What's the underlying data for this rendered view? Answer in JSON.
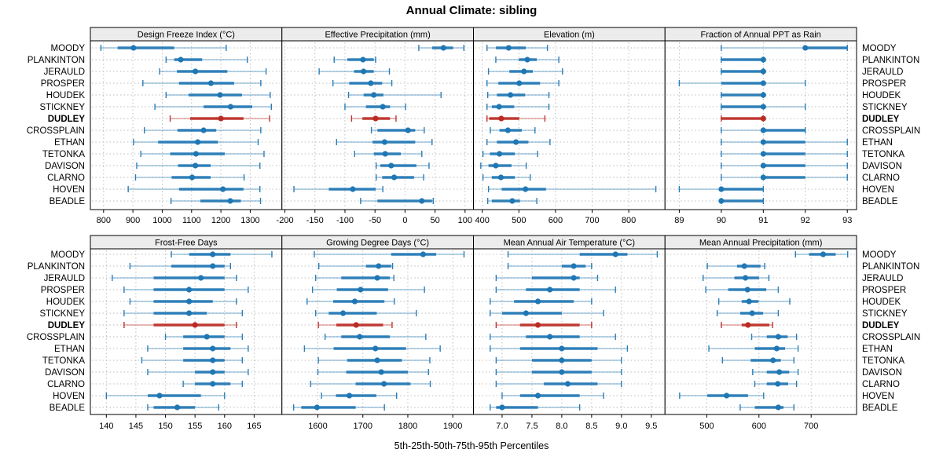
{
  "chart_data": {
    "type": "scatter",
    "subtype": "percentile-dotplot-lattice",
    "title": "Annual Climate: sibling",
    "caption": "5th-25th-50th-75th-95th Percentiles",
    "percentiles": [
      5,
      25,
      50,
      75,
      95
    ],
    "grid": "dotted",
    "legend_position": "none",
    "categories": [
      "MOODY",
      "PLANKINTON",
      "JERAULD",
      "PROSPER",
      "HOUDEK",
      "STICKNEY",
      "DUDLEY",
      "CROSSPLAIN",
      "ETHAN",
      "TETONKA",
      "DAVISON",
      "CLARNO",
      "HOVEN",
      "BEADLE"
    ],
    "highlight_category": "DUDLEY",
    "colors": {
      "series": "#1f77b4",
      "highlight": "#bb2a24",
      "strip_bg": "#ececec",
      "panel_border": "#000000",
      "grid_line": "#bdbdbd",
      "text": "#000000"
    },
    "panels": [
      {
        "label": "Design Freeze Index (°C)",
        "xlim": [
          755,
          1408
        ],
        "ticks": [
          800,
          900,
          1000,
          1100,
          1200,
          1300
        ],
        "tick_labels": [
          "800",
          "900",
          "1000",
          "1100",
          "1200",
          "1300"
        ],
        "values": [
          [
            791,
            848,
            902,
            1041,
            1218
          ],
          [
            1013,
            1041,
            1063,
            1136,
            1290
          ],
          [
            991,
            1050,
            1113,
            1222,
            1354
          ],
          [
            934,
            1057,
            1166,
            1245,
            1336
          ],
          [
            1013,
            1090,
            1197,
            1272,
            1368
          ],
          [
            975,
            1141,
            1233,
            1307,
            1372
          ],
          [
            1027,
            1095,
            1200,
            1277,
            1366
          ],
          [
            939,
            1052,
            1141,
            1184,
            1336
          ],
          [
            902,
            986,
            1121,
            1190,
            1327
          ],
          [
            927,
            1027,
            1115,
            1213,
            1347
          ],
          [
            913,
            1054,
            1113,
            1165,
            1333
          ],
          [
            909,
            1032,
            1102,
            1165,
            1279
          ],
          [
            884,
            1057,
            1207,
            1277,
            1333
          ],
          [
            1030,
            1130,
            1232,
            1268,
            1335
          ]
        ]
      },
      {
        "label": "Effective Precipitation (mm)",
        "xlim": [
          -205,
          114
        ],
        "ticks": [
          -200,
          -150,
          -100,
          -50,
          0,
          50,
          100
        ],
        "tick_labels": [
          "-200",
          "-150",
          "-100",
          "-50",
          "0",
          "50",
          "100"
        ],
        "values": [
          [
            23,
            45,
            64,
            80,
            98
          ],
          [
            -118,
            -96,
            -70,
            -52,
            -49
          ],
          [
            -143,
            -85,
            -69,
            -52,
            -26
          ],
          [
            -120,
            -93,
            -57,
            -38,
            -22
          ],
          [
            -94,
            -69,
            -52,
            -36,
            60
          ],
          [
            -100,
            -65,
            -37,
            -25,
            1
          ],
          [
            -89,
            -71,
            -49,
            -25,
            -15
          ],
          [
            -56,
            -46,
            5,
            17,
            32
          ],
          [
            -114,
            -54,
            -34,
            17,
            45
          ],
          [
            -84,
            -52,
            -33,
            -7,
            28
          ],
          [
            -48,
            -41,
            -23,
            19,
            40
          ],
          [
            -48,
            -38,
            -18,
            15,
            31
          ],
          [
            -185,
            -127,
            -87,
            -49,
            -37
          ],
          [
            -74,
            -46,
            28,
            45,
            47
          ]
        ]
      },
      {
        "label": "Elevation (m)",
        "xlim": [
          376,
          899
        ],
        "ticks": [
          400,
          500,
          600,
          700,
          800
        ],
        "tick_labels": [
          "400",
          "500",
          "600",
          "700",
          "800"
        ],
        "values": [
          [
            413,
            437,
            472,
            519,
            578
          ],
          [
            437,
            500,
            523,
            549,
            609
          ],
          [
            417,
            474,
            514,
            538,
            619
          ],
          [
            413,
            444,
            501,
            558,
            609
          ],
          [
            415,
            440,
            477,
            517,
            582
          ],
          [
            413,
            426,
            446,
            487,
            582
          ],
          [
            413,
            419,
            452,
            501,
            571
          ],
          [
            422,
            447,
            470,
            508,
            544
          ],
          [
            413,
            440,
            492,
            526,
            585
          ],
          [
            402,
            421,
            447,
            489,
            551
          ],
          [
            396,
            417,
            437,
            480,
            520
          ],
          [
            402,
            426,
            451,
            489,
            531
          ],
          [
            417,
            453,
            518,
            574,
            874
          ],
          [
            415,
            426,
            482,
            503,
            549
          ]
        ]
      },
      {
        "label": "Fraction of Annual PPT as Rain",
        "xlim": [
          88.66,
          93.22
        ],
        "ticks": [
          89,
          90,
          91,
          92,
          93
        ],
        "tick_labels": [
          "89",
          "90",
          "91",
          "92",
          "93"
        ],
        "values": [
          [
            90,
            92,
            92,
            93,
            93
          ],
          [
            90,
            90,
            91,
            91,
            91
          ],
          [
            90,
            90,
            91,
            91,
            91
          ],
          [
            89,
            90,
            91,
            91,
            92
          ],
          [
            90,
            90,
            91,
            91,
            91
          ],
          [
            90,
            90,
            91,
            91,
            92
          ],
          [
            90,
            90,
            91,
            91,
            91
          ],
          [
            90,
            91,
            91,
            92,
            92
          ],
          [
            90,
            91,
            91,
            92,
            93
          ],
          [
            90,
            91,
            91,
            92,
            93
          ],
          [
            90,
            91,
            91,
            92,
            93
          ],
          [
            90,
            91,
            91,
            92,
            93
          ],
          [
            89,
            90,
            90,
            91,
            91
          ],
          [
            90,
            90,
            90,
            91,
            91
          ]
        ]
      },
      {
        "label": "Frost-Free Days",
        "xlim": [
          137.3,
          169.7
        ],
        "ticks": [
          140,
          145,
          150,
          155,
          160,
          165
        ],
        "tick_labels": [
          "140",
          "145",
          "150",
          "155",
          "160",
          "165"
        ],
        "values": [
          [
            151,
            154,
            158,
            161,
            168
          ],
          [
            144,
            151,
            158,
            160,
            161
          ],
          [
            141,
            148,
            156,
            160,
            162
          ],
          [
            143,
            148,
            154,
            160,
            164
          ],
          [
            144,
            148,
            154,
            158,
            162
          ],
          [
            143,
            148,
            154,
            157,
            163
          ],
          [
            143,
            148,
            155,
            160,
            162
          ],
          [
            150,
            153,
            157,
            160,
            163
          ],
          [
            147,
            153,
            158,
            161,
            164
          ],
          [
            146,
            153,
            158,
            160,
            163
          ],
          [
            147,
            155,
            158,
            160,
            164
          ],
          [
            153,
            155,
            158,
            161,
            163
          ],
          [
            140,
            147,
            149,
            156,
            160
          ],
          [
            147,
            148,
            152,
            155,
            159
          ]
        ]
      },
      {
        "label": "Growing Degree Days (°C)",
        "xlim": [
          1520,
          1946
        ],
        "ticks": [
          1600,
          1700,
          1800,
          1900
        ],
        "tick_labels": [
          "1600",
          "1700",
          "1800",
          "1900"
        ],
        "values": [
          [
            1592,
            1763,
            1834,
            1863,
            1925
          ],
          [
            1602,
            1707,
            1735,
            1763,
            1766
          ],
          [
            1595,
            1652,
            1732,
            1760,
            1769
          ],
          [
            1588,
            1642,
            1695,
            1756,
            1837
          ],
          [
            1576,
            1634,
            1682,
            1748,
            1770
          ],
          [
            1595,
            1624,
            1656,
            1731,
            1819
          ],
          [
            1601,
            1641,
            1685,
            1745,
            1765
          ],
          [
            1616,
            1652,
            1693,
            1760,
            1840
          ],
          [
            1570,
            1635,
            1728,
            1796,
            1872
          ],
          [
            1601,
            1665,
            1732,
            1787,
            1849
          ],
          [
            1600,
            1663,
            1741,
            1800,
            1846
          ],
          [
            1584,
            1684,
            1747,
            1806,
            1850
          ],
          [
            1608,
            1640,
            1670,
            1730,
            1775
          ],
          [
            1546,
            1563,
            1598,
            1684,
            1748
          ]
        ]
      },
      {
        "label": "Mean Annual Air Temperature (°C)",
        "xlim": [
          6.52,
          9.73
        ],
        "ticks": [
          7.0,
          7.5,
          8.0,
          8.5,
          9.0,
          9.5
        ],
        "tick_labels": [
          "7.0",
          "7.5",
          "8.0",
          "8.5",
          "9.0",
          "9.5"
        ],
        "values": [
          [
            7.1,
            8.3,
            8.9,
            9.1,
            9.6
          ],
          [
            7.1,
            8.0,
            8.2,
            8.4,
            8.5
          ],
          [
            6.9,
            7.5,
            8.2,
            8.3,
            8.6
          ],
          [
            6.9,
            7.4,
            7.8,
            8.3,
            8.9
          ],
          [
            6.8,
            7.2,
            7.6,
            8.2,
            8.5
          ],
          [
            6.8,
            7.0,
            7.4,
            8.0,
            8.7
          ],
          [
            6.9,
            7.3,
            7.6,
            8.3,
            8.5
          ],
          [
            6.8,
            7.4,
            7.8,
            8.3,
            8.9
          ],
          [
            6.8,
            7.3,
            8.0,
            8.6,
            9.1
          ],
          [
            6.9,
            7.5,
            8.0,
            8.5,
            9.0
          ],
          [
            6.9,
            7.5,
            8.0,
            8.5,
            9.0
          ],
          [
            6.9,
            7.7,
            8.1,
            8.6,
            9.0
          ],
          [
            7.0,
            7.3,
            7.6,
            8.3,
            8.7
          ],
          [
            6.8,
            6.9,
            7.0,
            7.6,
            8.3
          ]
        ]
      },
      {
        "label": "Mean Annual Precipitation (mm)",
        "xlim": [
          420,
          787
        ],
        "ticks": [
          500,
          600,
          700
        ],
        "tick_labels": [
          "500",
          "600",
          "700"
        ],
        "values": [
          [
            670,
            696,
            723,
            747,
            770
          ],
          [
            501,
            558,
            572,
            603,
            611
          ],
          [
            493,
            553,
            574,
            600,
            619
          ],
          [
            498,
            541,
            578,
            614,
            637
          ],
          [
            523,
            567,
            581,
            599,
            659
          ],
          [
            520,
            564,
            587,
            608,
            637
          ],
          [
            528,
            567,
            579,
            620,
            626
          ],
          [
            586,
            615,
            637,
            655,
            672
          ],
          [
            504,
            592,
            634,
            650,
            675
          ],
          [
            530,
            584,
            627,
            642,
            667
          ],
          [
            588,
            615,
            639,
            658,
            675
          ],
          [
            592,
            615,
            636,
            656,
            672
          ],
          [
            448,
            501,
            538,
            579,
            609
          ],
          [
            564,
            592,
            637,
            647,
            667
          ]
        ]
      }
    ]
  }
}
